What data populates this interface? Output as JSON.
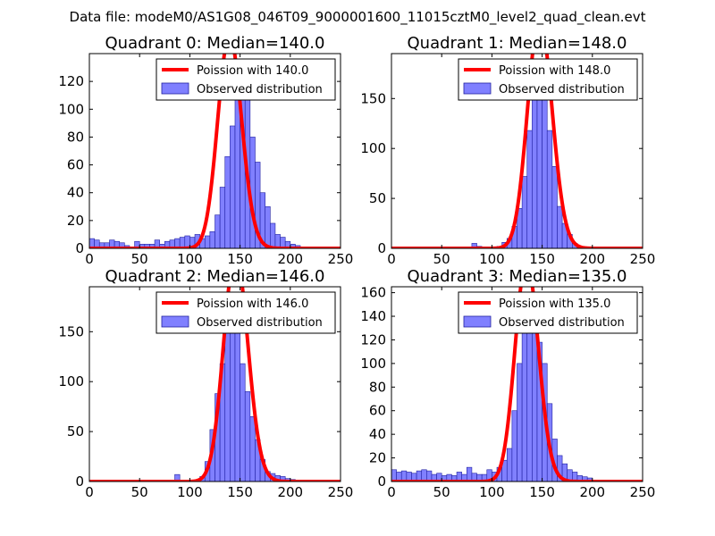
{
  "figure": {
    "suptitle": "Data file: modeM0/AS1G08_046T09_9000001600_11015cztM0_level2_quad_clean.evt"
  },
  "colors": {
    "poisson_line": "#ff0000",
    "bar_fill": "#8080ff",
    "bar_edge": "#2020a0",
    "axes": "#000000"
  },
  "chart_data": [
    {
      "type": "bar",
      "title": "Quadrant 0: Median=140.0",
      "median": 140.0,
      "xlim": [
        0,
        250
      ],
      "ylim": [
        0,
        140
      ],
      "xticks": [
        0,
        50,
        100,
        150,
        200,
        250
      ],
      "yticks": [
        0,
        20,
        40,
        60,
        80,
        100,
        120
      ],
      "legend_position": "top-right",
      "series": [
        {
          "name": "Poission with 140.0",
          "kind": "line",
          "mean": 140.0,
          "scale": 4550
        },
        {
          "name": "Observed distribution",
          "kind": "histogram",
          "bin_width": 5,
          "bin_start": 0,
          "values": [
            7,
            6,
            4,
            4,
            6,
            5,
            4,
            2,
            0,
            5,
            3,
            3,
            3,
            6,
            3,
            5,
            6,
            7,
            8,
            9,
            8,
            10,
            7,
            9,
            12,
            24,
            44,
            66,
            88,
            120,
            135,
            112,
            80,
            62,
            40,
            30,
            18,
            10,
            8,
            5,
            3,
            2,
            1,
            0,
            1,
            0,
            0,
            0,
            0,
            0
          ]
        }
      ]
    },
    {
      "type": "bar",
      "title": "Quadrant 1: Median=148.0",
      "median": 148.0,
      "xlim": [
        0,
        250
      ],
      "ylim": [
        0,
        195
      ],
      "xticks": [
        0,
        50,
        100,
        150,
        200,
        250
      ],
      "yticks": [
        0,
        50,
        100,
        150
      ],
      "legend_position": "top-right",
      "series": [
        {
          "name": "Poission with 148.0",
          "kind": "line",
          "mean": 148.0,
          "scale": 7050
        },
        {
          "name": "Observed distribution",
          "kind": "histogram",
          "bin_width": 5,
          "bin_start": 0,
          "values": [
            0,
            0,
            0,
            0,
            0,
            0,
            0,
            0,
            0,
            0,
            0,
            0,
            0,
            0,
            0,
            0,
            5,
            2,
            0,
            0,
            1,
            2,
            6,
            10,
            22,
            40,
            72,
            118,
            165,
            185,
            160,
            118,
            82,
            42,
            25,
            14,
            5,
            2,
            0,
            0,
            0,
            0,
            0,
            0,
            0,
            0,
            0,
            0,
            0,
            0
          ]
        }
      ]
    },
    {
      "type": "bar",
      "title": "Quadrant 2: Median=146.0",
      "median": 146.0,
      "xlim": [
        0,
        250
      ],
      "ylim": [
        0,
        195
      ],
      "xticks": [
        0,
        50,
        100,
        150,
        200,
        250
      ],
      "yticks": [
        0,
        50,
        100,
        150
      ],
      "legend_position": "top-right",
      "series": [
        {
          "name": "Poission with 146.0",
          "kind": "line",
          "mean": 146.0,
          "scale": 6900
        },
        {
          "name": "Observed distribution",
          "kind": "histogram",
          "bin_width": 5,
          "bin_start": 0,
          "values": [
            0,
            0,
            0,
            0,
            0,
            0,
            0,
            0,
            0,
            0,
            0,
            0,
            0,
            0,
            0,
            0,
            0,
            7,
            0,
            0,
            0,
            0,
            5,
            20,
            52,
            88,
            118,
            158,
            180,
            152,
            118,
            90,
            65,
            42,
            22,
            10,
            8,
            6,
            5,
            3,
            2,
            1,
            0,
            0,
            0,
            0,
            0,
            0,
            0,
            0
          ]
        }
      ]
    },
    {
      "type": "bar",
      "title": "Quadrant 3: Median=135.0",
      "median": 135.0,
      "xlim": [
        0,
        250
      ],
      "ylim": [
        0,
        165
      ],
      "xticks": [
        0,
        50,
        100,
        150,
        200,
        250
      ],
      "yticks": [
        0,
        20,
        40,
        60,
        80,
        100,
        120,
        140,
        160
      ],
      "legend_position": "top-right",
      "series": [
        {
          "name": "Poission with 135.0",
          "kind": "line",
          "mean": 135.0,
          "scale": 5450
        },
        {
          "name": "Observed distribution",
          "kind": "histogram",
          "bin_width": 5,
          "bin_start": 0,
          "values": [
            10,
            8,
            9,
            8,
            7,
            9,
            10,
            9,
            6,
            7,
            5,
            6,
            5,
            8,
            6,
            12,
            7,
            6,
            6,
            10,
            8,
            12,
            18,
            28,
            60,
            100,
            128,
            160,
            148,
            118,
            100,
            66,
            36,
            22,
            15,
            10,
            8,
            5,
            4,
            3,
            1,
            0,
            0,
            0,
            0,
            0,
            0,
            0,
            0,
            0
          ]
        }
      ]
    }
  ]
}
